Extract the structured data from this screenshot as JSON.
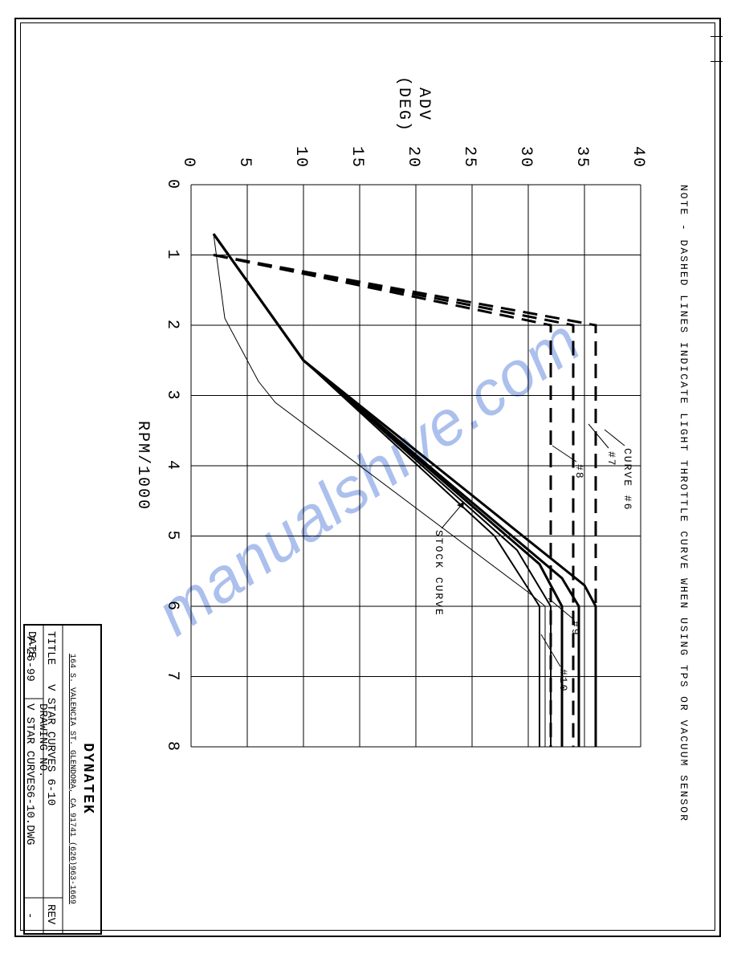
{
  "note_text": "NOTE - DASHED LINES INDICATE LIGHT THROTTLE CURVE WHEN USING TPS OR VACUUM SENSOR",
  "chart": {
    "type": "line",
    "background_color": "#ffffff",
    "grid_color": "#000000",
    "xlabel": "RPM/1000",
    "ylabel_line1": "ADV",
    "ylabel_line2": "(DEG)",
    "xlim": [
      0,
      8
    ],
    "ylim": [
      0,
      40
    ],
    "xtick_step": 1,
    "ytick_step": 5,
    "xticks": [
      "0",
      "1",
      "2",
      "3",
      "4",
      "5",
      "6",
      "7",
      "8"
    ],
    "yticks": [
      "0",
      "5",
      "10",
      "15",
      "20",
      "25",
      "30",
      "35",
      "40"
    ],
    "label_fontsize": 20,
    "tick_fontsize": 20,
    "series": {
      "curve6": {
        "label": "CURVE #6",
        "style": "thick",
        "x": [
          0.7,
          2.5,
          5.7,
          6,
          8
        ],
        "y": [
          2,
          10,
          35,
          36,
          36
        ]
      },
      "curve7": {
        "label": "#7",
        "style": "thick",
        "x": [
          0.7,
          2.5,
          5.6,
          6,
          8
        ],
        "y": [
          2,
          10,
          33,
          34.5,
          34.5
        ]
      },
      "curve8": {
        "label": "#8",
        "style": "thick",
        "x": [
          0.7,
          2.5,
          5.4,
          6,
          8
        ],
        "y": [
          2,
          10,
          31,
          33,
          33
        ]
      },
      "curve9": {
        "label": "#9",
        "style": "med",
        "x": [
          0.7,
          2.5,
          5.2,
          6,
          8
        ],
        "y": [
          2,
          10,
          29,
          32,
          32
        ]
      },
      "curve10": {
        "label": "#10",
        "style": "med",
        "x": [
          0.7,
          2.5,
          5.0,
          6,
          8
        ],
        "y": [
          2,
          10,
          27,
          31,
          31
        ]
      },
      "stock": {
        "label": "STOCK CURVE",
        "style": "thin",
        "x": [
          0.7,
          1.9,
          2.8,
          3.1,
          5.8,
          6,
          8
        ],
        "y": [
          2,
          3,
          6,
          7.5,
          30,
          31.5,
          31.5
        ]
      },
      "dash6": {
        "style": "dash",
        "x": [
          1,
          2,
          8
        ],
        "y": [
          2,
          36,
          36
        ]
      },
      "dash7": {
        "style": "dash",
        "x": [
          1,
          2,
          8
        ],
        "y": [
          2,
          34,
          34
        ]
      },
      "dash8": {
        "style": "dash",
        "x": [
          1,
          2,
          8
        ],
        "y": [
          2,
          32,
          32
        ]
      }
    }
  },
  "titleblock": {
    "company": "DYNATEK",
    "address": "164 S. VALENCIA ST.  GLENDORA, CA  91741  (626)963-1669",
    "title_label": "TITLE",
    "title": "V STAR CURVES 6-10",
    "date_label": "DATE",
    "date": "7-26-99",
    "dwg_label": "DRAWING NO.",
    "dwg": "V STAR CURVES6-10.DWG",
    "rev_label": "REV",
    "rev": "-"
  },
  "watermark": "manualshive.com",
  "colors": {
    "line": "#000000",
    "background": "#ffffff",
    "watermark": "#6a8ee0"
  }
}
